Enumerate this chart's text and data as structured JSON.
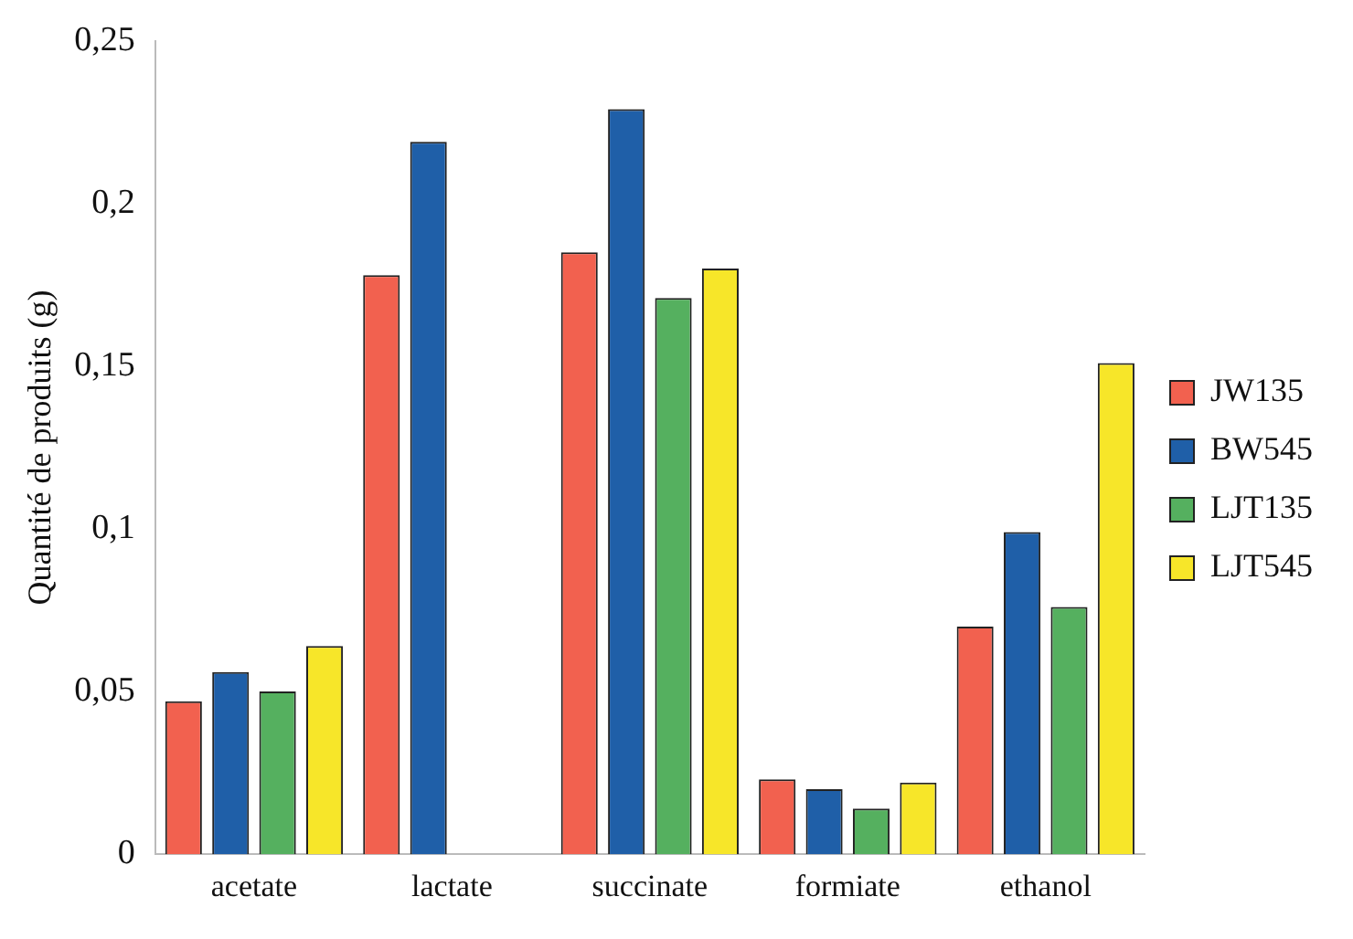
{
  "chart_data": {
    "type": "bar",
    "ylabel": "Quantité de produits (g)",
    "categories": [
      "acetate",
      "lactate",
      "succinate",
      "formiate",
      "ethanol"
    ],
    "series": [
      {
        "name": "JW135",
        "color": "#f2614f",
        "values": [
          0.047,
          0.178,
          0.185,
          0.023,
          0.07
        ]
      },
      {
        "name": "BW545",
        "color": "#1f5fa8",
        "values": [
          0.056,
          0.219,
          0.229,
          0.02,
          0.099
        ]
      },
      {
        "name": "LJT135",
        "color": "#55b05f",
        "values": [
          0.05,
          null,
          0.171,
          0.014,
          0.076
        ]
      },
      {
        "name": "LJT545",
        "color": "#f7e629",
        "values": [
          0.064,
          null,
          0.18,
          0.022,
          0.151
        ]
      }
    ],
    "ylim": [
      0,
      0.25
    ],
    "yticks": [
      {
        "value": 0,
        "label": "0"
      },
      {
        "value": 0.05,
        "label": "0,05"
      },
      {
        "value": 0.1,
        "label": "0,1"
      },
      {
        "value": 0.15,
        "label": "0,15"
      },
      {
        "value": 0.2,
        "label": "0,2"
      },
      {
        "value": 0.25,
        "label": "0,25"
      }
    ],
    "grid": false,
    "legend": "right"
  }
}
